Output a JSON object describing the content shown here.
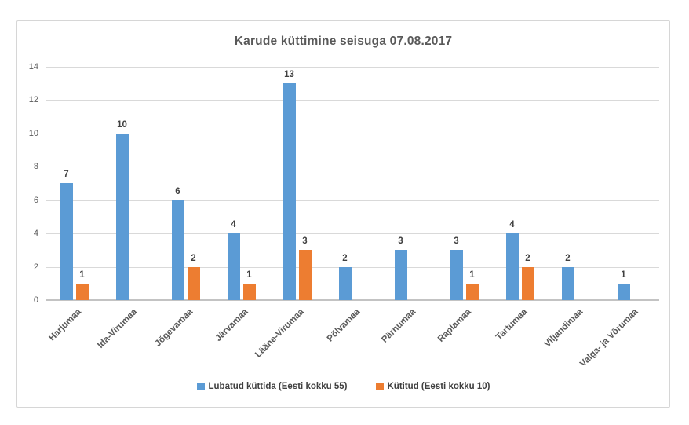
{
  "chart_data": {
    "type": "bar",
    "title": "Karude küttimine seisuga 07.08.2017",
    "categories": [
      "Harjumaa",
      "Ida-Virumaa",
      "Jõgevamaa",
      "Järvamaa",
      "Lääne-Virumaa",
      "Põlvamaa",
      "Pärnumaa",
      "Raplamaa",
      "Tartumaa",
      "Viljandimaa",
      "Valga- ja Võrumaa"
    ],
    "series": [
      {
        "name": "Lubatud küttida (Eesti kokku 55)",
        "color": "#5B9BD5",
        "values": [
          7,
          10,
          6,
          4,
          13,
          2,
          3,
          3,
          4,
          2,
          1
        ]
      },
      {
        "name": "Kütitud (Eesti kokku 10)",
        "color": "#ED7D31",
        "values": [
          1,
          0,
          2,
          1,
          3,
          0,
          0,
          1,
          2,
          0,
          0
        ]
      }
    ],
    "xlabel": "",
    "ylabel": "",
    "y_axis": {
      "min": 0,
      "max": 14,
      "step": 2,
      "ticks": [
        0,
        2,
        4,
        6,
        8,
        10,
        12,
        14
      ]
    },
    "grid": true,
    "legend_position": "bottom",
    "data_labels_shown": true,
    "zero_values_hidden": true,
    "colors": {
      "grid": "#d9d9d9",
      "axis": "#c3c3c3",
      "text": "#595959",
      "data_label": "#404040"
    }
  }
}
